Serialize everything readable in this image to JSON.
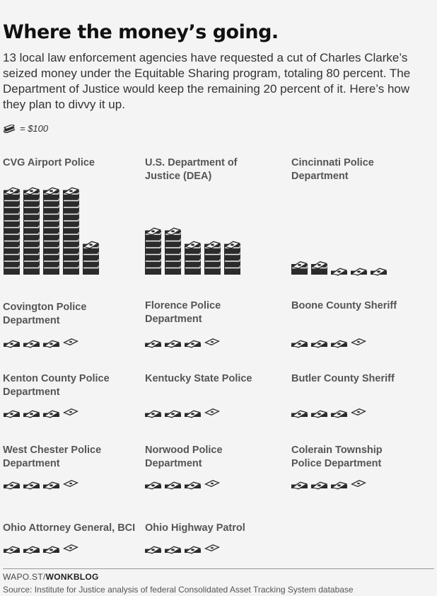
{
  "title": "Where the money’s going.",
  "subtitle": "13 local law enforcement agencies have requested a cut of Charles Clarke’s seized money under the Equitable Sharing program, totaling 80 percent. The Department of Justice would keep the remaining 20 percent of it. Here’s how they plan to divvy it up.",
  "legend": {
    "icon": "cash-stack-icon",
    "label": "= $100"
  },
  "colors": {
    "ink": "#2b2b2b",
    "bill": "#f4f4f4",
    "label": "#555555"
  },
  "credit": {
    "prefix": "WAPO.ST/",
    "brand": "WONKBLOG"
  },
  "source": "Source: Institute for Justice analysis of federal Consolidated Asset Tracking System database",
  "chart_data": {
    "type": "pictogram",
    "unit_label": "= $100",
    "agencies": [
      {
        "label": "CVG Airport Police",
        "stacks": [
          13,
          13,
          13,
          13,
          4.5
        ]
      },
      {
        "label": "U.S. Department of Justice (DEA)",
        "stacks": [
          6.5,
          6.5,
          5,
          5,
          5
        ]
      },
      {
        "label": "Cincinnati Police Department",
        "stacks": [
          2,
          2,
          1,
          1,
          1
        ]
      },
      {
        "label": "Covington Police Department",
        "stacks": [
          1,
          1,
          1,
          0.25
        ]
      },
      {
        "label": "Florence Police Department",
        "stacks": [
          1,
          1,
          1,
          0.25
        ]
      },
      {
        "label": "Boone County Sheriff",
        "stacks": [
          1,
          1,
          1,
          0.25
        ]
      },
      {
        "label": "Kenton County Police Department",
        "stacks": [
          1,
          1,
          1,
          0.25
        ]
      },
      {
        "label": "Kentucky State Police",
        "stacks": [
          1,
          1,
          1,
          0.25
        ]
      },
      {
        "label": "Butler County Sheriff",
        "stacks": [
          1,
          1,
          1,
          0.25
        ]
      },
      {
        "label": "West Chester Police Department",
        "stacks": [
          1,
          1,
          1,
          0.25
        ]
      },
      {
        "label": "Norwood Police Department",
        "stacks": [
          1,
          1,
          1,
          0.25
        ]
      },
      {
        "label": "Colerain Township Police Department",
        "stacks": [
          1,
          1,
          1,
          0.25
        ]
      },
      {
        "label": "Ohio Attorney General, BCI",
        "stacks": [
          1,
          1,
          1,
          0.25
        ]
      },
      {
        "label": "Ohio Highway Patrol",
        "stacks": [
          1,
          1,
          1,
          0.25
        ]
      }
    ]
  }
}
